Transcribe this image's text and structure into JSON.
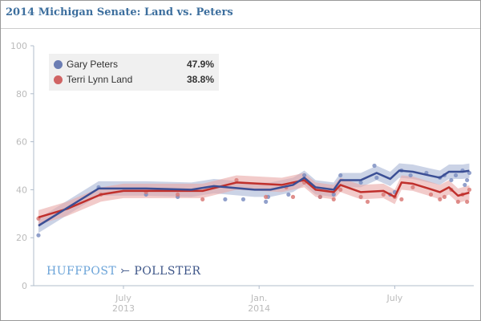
{
  "title": "2014 Michigan Senate: Land vs. Peters",
  "logo": {
    "left": "HUFFPOST",
    "right": "POLLSTER"
  },
  "legend": [
    {
      "name": "Gary Peters",
      "value": "47.9%",
      "color": "#6b7db3"
    },
    {
      "name": "Terri Lynn Land",
      "value": "38.8%",
      "color": "#d06464"
    }
  ],
  "chart_data": {
    "type": "line",
    "title": "2014 Michigan Senate: Land vs. Peters",
    "xlabel": "",
    "ylabel": "",
    "ylim": [
      0,
      100
    ],
    "yticks": [
      0,
      20,
      40,
      60,
      80,
      100
    ],
    "x_unit": "months since Jan 2013",
    "xlim": [
      1.3,
      21.6
    ],
    "xticks": [
      {
        "x": 6,
        "line1": "July",
        "line2": "2013"
      },
      {
        "x": 12,
        "line1": "Jan.",
        "line2": "2014"
      },
      {
        "x": 18,
        "line1": "July",
        "line2": ""
      }
    ],
    "band": 3,
    "series": [
      {
        "name": "Gary Peters",
        "color": "#3b4f95",
        "band_color": "#a9b5d6",
        "dot_color": "#7e8fc2",
        "trend": [
          [
            2.24,
            25
          ],
          [
            4.9,
            40.5
          ],
          [
            7,
            40.5
          ],
          [
            9,
            40
          ],
          [
            10,
            41.5
          ],
          [
            11.8,
            40
          ],
          [
            12.5,
            40
          ],
          [
            13.5,
            42
          ],
          [
            14,
            45
          ],
          [
            14.5,
            41
          ],
          [
            15.3,
            40
          ],
          [
            15.6,
            44
          ],
          [
            16.5,
            44
          ],
          [
            17.2,
            47
          ],
          [
            17.8,
            44.5
          ],
          [
            18.2,
            48
          ],
          [
            18.8,
            47.5
          ],
          [
            19.5,
            46
          ],
          [
            20,
            45
          ],
          [
            20.4,
            47.5
          ],
          [
            21,
            47.5
          ],
          [
            21.3,
            47.9
          ]
        ],
        "polls": [
          [
            2.24,
            21
          ],
          [
            4.9,
            41
          ],
          [
            7,
            38
          ],
          [
            8.4,
            37
          ],
          [
            10.5,
            36
          ],
          [
            11.3,
            36
          ],
          [
            12.3,
            35
          ],
          [
            12.4,
            37
          ],
          [
            13.3,
            38
          ],
          [
            14,
            46
          ],
          [
            14.7,
            37
          ],
          [
            15.3,
            38
          ],
          [
            15.6,
            46
          ],
          [
            16.5,
            43
          ],
          [
            17.1,
            50
          ],
          [
            17.2,
            45
          ],
          [
            17.8,
            38
          ],
          [
            18,
            39
          ],
          [
            18.3,
            48
          ],
          [
            18.7,
            46
          ],
          [
            19.4,
            47
          ],
          [
            20,
            45
          ],
          [
            20.2,
            46
          ],
          [
            20.5,
            44
          ],
          [
            20.7,
            46
          ],
          [
            21,
            48
          ],
          [
            21.1,
            42
          ],
          [
            21.2,
            44
          ],
          [
            21.3,
            47
          ]
        ]
      },
      {
        "name": "Terri Lynn Land",
        "color": "#c0302c",
        "band_color": "#e9a9a7",
        "dot_color": "#d97b78",
        "trend": [
          [
            2.24,
            28.5
          ],
          [
            3.5,
            32
          ],
          [
            5,
            38
          ],
          [
            6,
            39.5
          ],
          [
            8,
            39.5
          ],
          [
            9.5,
            39.5
          ],
          [
            11,
            43
          ],
          [
            12,
            42.5
          ],
          [
            13,
            42
          ],
          [
            14,
            44
          ],
          [
            14.5,
            40
          ],
          [
            15.3,
            39
          ],
          [
            15.6,
            42
          ],
          [
            16.5,
            39
          ],
          [
            17.5,
            39.5
          ],
          [
            18,
            37
          ],
          [
            18.3,
            43
          ],
          [
            18.8,
            42.5
          ],
          [
            19.5,
            40.5
          ],
          [
            20,
            39
          ],
          [
            20.4,
            41
          ],
          [
            20.8,
            37.5
          ],
          [
            21.3,
            38.8
          ]
        ],
        "polls": [
          [
            2.24,
            28
          ],
          [
            5,
            38
          ],
          [
            7,
            39
          ],
          [
            8.4,
            38
          ],
          [
            9.5,
            36
          ],
          [
            11,
            44
          ],
          [
            12.3,
            37
          ],
          [
            13.2,
            41
          ],
          [
            13.5,
            37
          ],
          [
            14,
            43
          ],
          [
            14.7,
            37
          ],
          [
            15.3,
            36
          ],
          [
            15.6,
            40
          ],
          [
            16.5,
            37
          ],
          [
            16.8,
            35
          ],
          [
            17.5,
            38
          ],
          [
            18,
            37
          ],
          [
            18.3,
            36
          ],
          [
            18.8,
            41
          ],
          [
            19.6,
            38
          ],
          [
            20,
            36
          ],
          [
            20.2,
            37
          ],
          [
            20.5,
            40
          ],
          [
            20.8,
            35
          ],
          [
            21,
            38
          ],
          [
            21.2,
            35
          ],
          [
            21.3,
            40
          ]
        ]
      }
    ]
  }
}
